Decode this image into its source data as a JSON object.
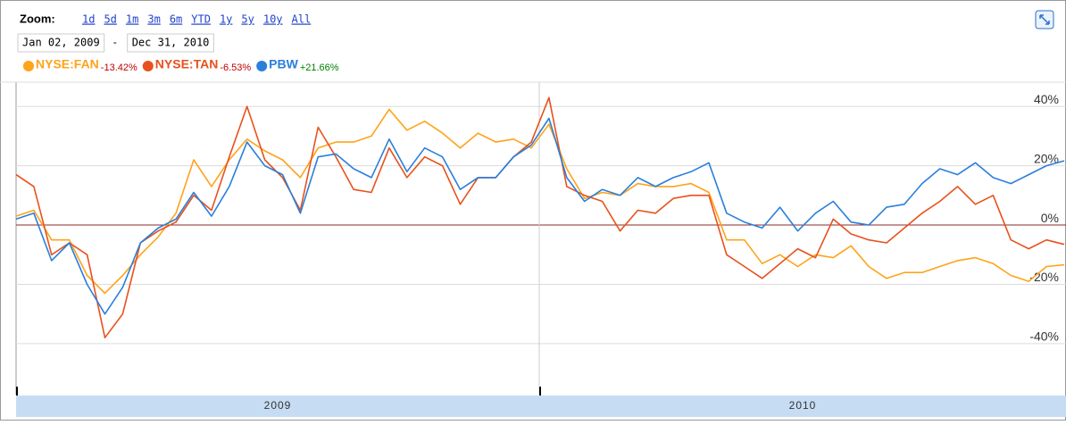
{
  "chart_data": {
    "type": "line",
    "zoom_label": "Zoom:",
    "zoom_options": [
      "1d",
      "5d",
      "1m",
      "3m",
      "6m",
      "YTD",
      "1y",
      "5y",
      "10y",
      "All"
    ],
    "date_from": "Jan 02, 2009",
    "date_separator": "-",
    "date_to": "Dec 31, 2010",
    "periods": [
      "2009",
      "2010"
    ],
    "ylim": [
      -56.6,
      48.2
    ],
    "yticks": [
      {
        "value": 40,
        "label": "40%"
      },
      {
        "value": 20,
        "label": "20%"
      },
      {
        "value": 0,
        "label": "0%"
      },
      {
        "value": -20,
        "label": "-20%"
      },
      {
        "value": -40,
        "label": "-40%"
      }
    ],
    "grid": true,
    "series": [
      {
        "name": "NYSE:FAN",
        "change": "-13.42%",
        "change_color": "#c00000",
        "color": "#ffa31a",
        "values": [
          3,
          5,
          -5,
          -5,
          -17,
          -23,
          -17,
          -10,
          -4,
          4,
          22,
          13,
          22,
          29,
          25,
          22,
          16,
          26,
          28,
          28,
          30,
          39,
          32,
          35,
          31,
          26,
          31,
          28,
          29,
          26,
          34,
          19,
          9,
          11,
          10,
          14,
          13,
          13,
          14,
          11,
          -5,
          -5,
          -13,
          -10,
          -14,
          -10,
          -11,
          -7,
          -14,
          -18,
          -16,
          -16,
          -14,
          -12,
          -11,
          -13,
          -17,
          -19,
          -14,
          -13.42
        ]
      },
      {
        "name": "NYSE:TAN",
        "change": "-6.53%",
        "change_color": "#c00000",
        "color": "#e8511c",
        "values": [
          17,
          13,
          -10,
          -6,
          -10,
          -38,
          -30,
          -6,
          -2,
          1,
          10,
          5,
          23,
          40,
          22,
          16,
          5,
          33,
          23,
          12,
          11,
          26,
          16,
          23,
          20,
          7,
          16,
          16,
          23,
          28,
          43,
          13,
          10,
          8,
          -2,
          5,
          4,
          9,
          10,
          10,
          -10,
          -14,
          -18,
          -13,
          -8,
          -11,
          2,
          -3,
          -5,
          -6,
          -1,
          4,
          8,
          13,
          7,
          10,
          -5,
          -8,
          -5,
          -6.53
        ]
      },
      {
        "name": "PBW",
        "change": "+21.66%",
        "change_color": "#008000",
        "color": "#2a7fdb",
        "values": [
          2,
          4,
          -12,
          -6,
          -20,
          -30,
          -21,
          -6,
          -1,
          2,
          11,
          3,
          13,
          28,
          20,
          17,
          4,
          23,
          24,
          19,
          16,
          29,
          18,
          26,
          23,
          12,
          16,
          16,
          23,
          27,
          36,
          16,
          8,
          12,
          10,
          16,
          13,
          16,
          18,
          21,
          4,
          1,
          -1,
          6,
          -2,
          4,
          8,
          1,
          0,
          6,
          7,
          14,
          19,
          17,
          21,
          16,
          14,
          17,
          20,
          21.66
        ]
      }
    ]
  }
}
